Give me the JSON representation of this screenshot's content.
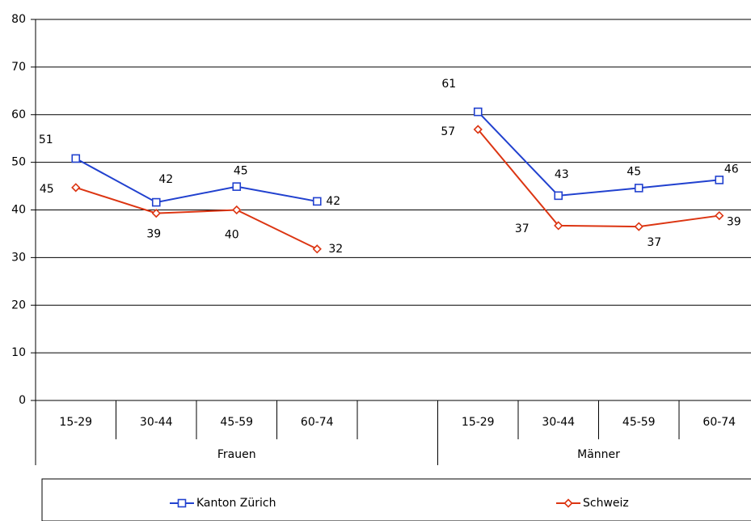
{
  "chart_data": {
    "type": "line",
    "categories": [
      "15-29",
      "30-44",
      "45-59",
      "60-74",
      null,
      "15-29",
      "30-44",
      "45-59",
      "60-74"
    ],
    "groups": [
      "Frauen",
      "Männer"
    ],
    "series": [
      {
        "name": "Kanton Zürich",
        "color": "#2141cf",
        "marker": "square",
        "values": [
          50.8,
          41.6,
          44.9,
          41.8,
          null,
          60.6,
          43.0,
          44.6,
          46.3
        ],
        "value_labels": [
          "51",
          "42",
          "45",
          "42",
          null,
          "61",
          "43",
          "45",
          "46"
        ]
      },
      {
        "name": "Schweiz",
        "color": "#dc3512",
        "marker": "diamond",
        "values": [
          44.7,
          39.3,
          40.0,
          31.8,
          null,
          56.9,
          36.7,
          36.5,
          38.8
        ],
        "value_labels": [
          "45",
          "39",
          "40",
          "32",
          null,
          "57",
          "37",
          "37",
          "39"
        ]
      }
    ],
    "ylim": [
      0,
      80
    ],
    "yticks": [
      0,
      10,
      20,
      30,
      40,
      50,
      60,
      70,
      80
    ],
    "grid": true,
    "legend": "bottom"
  }
}
